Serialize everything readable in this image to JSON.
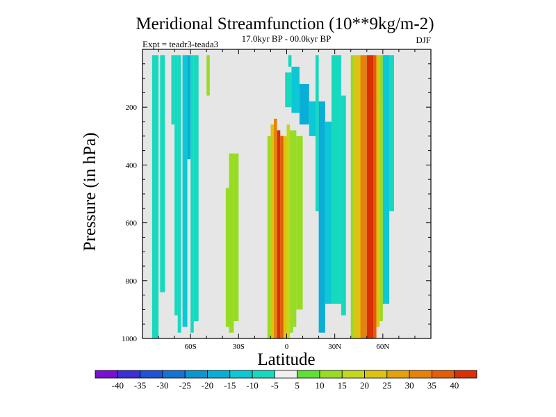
{
  "chart_data": {
    "type": "contour",
    "title": "Meridional Streamfunction (10**9kg/m-2)",
    "subtitle": "17.0kyr BP - 00.0kyr BP",
    "left_label": "Expt = teadr3-teada3",
    "season": "DJF",
    "xlabel": "Latitude",
    "ylabel": "Pressure (in hPa)",
    "xlim": [
      -90,
      90
    ],
    "ylim": [
      1000,
      0
    ],
    "x_ticks": [
      {
        "value": -60,
        "label": "60S"
      },
      {
        "value": -30,
        "label": "30S"
      },
      {
        "value": 0,
        "label": "0"
      },
      {
        "value": 30,
        "label": "30N"
      },
      {
        "value": 60,
        "label": "60N"
      }
    ],
    "y_ticks": [
      {
        "value": 200,
        "label": "200"
      },
      {
        "value": 400,
        "label": "400"
      },
      {
        "value": 600,
        "label": "600"
      },
      {
        "value": 800,
        "label": "800"
      },
      {
        "value": 1000,
        "label": "1000"
      }
    ],
    "colorbar": {
      "boundaries": [
        "-40",
        "-35",
        "-30",
        "-25",
        "-20",
        "-15",
        "-10",
        "-5",
        "5",
        "10",
        "15",
        "20",
        "25",
        "30",
        "35",
        "40"
      ],
      "colors": [
        "#7a0fd4",
        "#3b2fd9",
        "#1f52d6",
        "#1673d3",
        "#0d95cf",
        "#08aed6",
        "#0cc7d6",
        "#16d9be",
        "#f0f0f0",
        "#5fe032",
        "#97dc22",
        "#c3d818",
        "#dcc310",
        "#e3a20a",
        "#e68207",
        "#e45e05",
        "#d93004"
      ]
    },
    "field_cells": [
      {
        "lat": [
          -84,
          -80
        ],
        "p": [
          20,
          1000
        ],
        "level": -10
      },
      {
        "lat": [
          -79,
          -76
        ],
        "p": [
          20,
          840
        ],
        "level": -10
      },
      {
        "lat": [
          -72,
          -70
        ],
        "p": [
          20,
          260
        ],
        "level": -10
      },
      {
        "lat": [
          -70,
          -68
        ],
        "p": [
          20,
          920
        ],
        "level": -10
      },
      {
        "lat": [
          -68,
          -66
        ],
        "p": [
          20,
          980
        ],
        "level": -10
      },
      {
        "lat": [
          -65,
          -62
        ],
        "p": [
          20,
          960
        ],
        "level": -15
      },
      {
        "lat": [
          -62,
          -60
        ],
        "p": [
          20,
          380
        ],
        "level": -20
      },
      {
        "lat": [
          -60,
          -58
        ],
        "p": [
          20,
          980
        ],
        "level": -10
      },
      {
        "lat": [
          -58,
          -55
        ],
        "p": [
          20,
          940
        ],
        "level": -10
      },
      {
        "lat": [
          -50,
          -48
        ],
        "p": [
          20,
          160
        ],
        "level": 10
      },
      {
        "lat": [
          -38,
          -36
        ],
        "p": [
          480,
          960
        ],
        "level": 10
      },
      {
        "lat": [
          -36,
          -33
        ],
        "p": [
          360,
          980
        ],
        "level": 10
      },
      {
        "lat": [
          -33,
          -30
        ],
        "p": [
          360,
          940
        ],
        "level": 10
      },
      {
        "lat": [
          -12,
          -10
        ],
        "p": [
          300,
          1000
        ],
        "level": 10
      },
      {
        "lat": [
          -10,
          -8
        ],
        "p": [
          260,
          1000
        ],
        "level": 20
      },
      {
        "lat": [
          -8,
          -6
        ],
        "p": [
          240,
          1000
        ],
        "level": 30
      },
      {
        "lat": [
          -6,
          -4
        ],
        "p": [
          280,
          1000
        ],
        "level": 40
      },
      {
        "lat": [
          -4,
          -2
        ],
        "p": [
          300,
          1000
        ],
        "level": 35
      },
      {
        "lat": [
          -2,
          0
        ],
        "p": [
          300,
          1000
        ],
        "level": 20
      },
      {
        "lat": [
          0,
          2
        ],
        "p": [
          260,
          1000
        ],
        "level": 15
      },
      {
        "lat": [
          2,
          4
        ],
        "p": [
          280,
          980
        ],
        "level": 10
      },
      {
        "lat": [
          4,
          6
        ],
        "p": [
          280,
          960
        ],
        "level": 10
      },
      {
        "lat": [
          6,
          10
        ],
        "p": [
          300,
          900
        ],
        "level": 10
      },
      {
        "lat": [
          1,
          3
        ],
        "p": [
          20,
          60
        ],
        "level": -10
      },
      {
        "lat": [
          -1,
          3
        ],
        "p": [
          80,
          200
        ],
        "level": -10
      },
      {
        "lat": [
          3,
          8
        ],
        "p": [
          60,
          220
        ],
        "level": -15
      },
      {
        "lat": [
          8,
          14
        ],
        "p": [
          120,
          260
        ],
        "level": -20
      },
      {
        "lat": [
          14,
          18
        ],
        "p": [
          180,
          300
        ],
        "level": -15
      },
      {
        "lat": [
          18,
          20
        ],
        "p": [
          20,
          560
        ],
        "level": -10
      },
      {
        "lat": [
          20,
          24
        ],
        "p": [
          180,
          980
        ],
        "level": -20
      },
      {
        "lat": [
          24,
          28
        ],
        "p": [
          250,
          880
        ],
        "level": -15
      },
      {
        "lat": [
          28,
          34
        ],
        "p": [
          20,
          880
        ],
        "level": -10
      },
      {
        "lat": [
          34,
          37
        ],
        "p": [
          160,
          920
        ],
        "level": -10
      },
      {
        "lat": [
          40,
          42
        ],
        "p": [
          20,
          1000
        ],
        "level": 10
      },
      {
        "lat": [
          42,
          46
        ],
        "p": [
          20,
          1000
        ],
        "level": 20
      },
      {
        "lat": [
          46,
          50
        ],
        "p": [
          20,
          1000
        ],
        "level": 30
      },
      {
        "lat": [
          50,
          54
        ],
        "p": [
          20,
          1000
        ],
        "level": 40
      },
      {
        "lat": [
          54,
          56
        ],
        "p": [
          20,
          1000
        ],
        "level": 35
      },
      {
        "lat": [
          56,
          58
        ],
        "p": [
          20,
          960
        ],
        "level": 20
      },
      {
        "lat": [
          58,
          60
        ],
        "p": [
          20,
          940
        ],
        "level": 10
      },
      {
        "lat": [
          60,
          64
        ],
        "p": [
          20,
          180
        ],
        "level": -10
      },
      {
        "lat": [
          60,
          64
        ],
        "p": [
          20,
          880
        ],
        "level": -15
      },
      {
        "lat": [
          64,
          67
        ],
        "p": [
          20,
          560
        ],
        "level": -10
      }
    ]
  }
}
